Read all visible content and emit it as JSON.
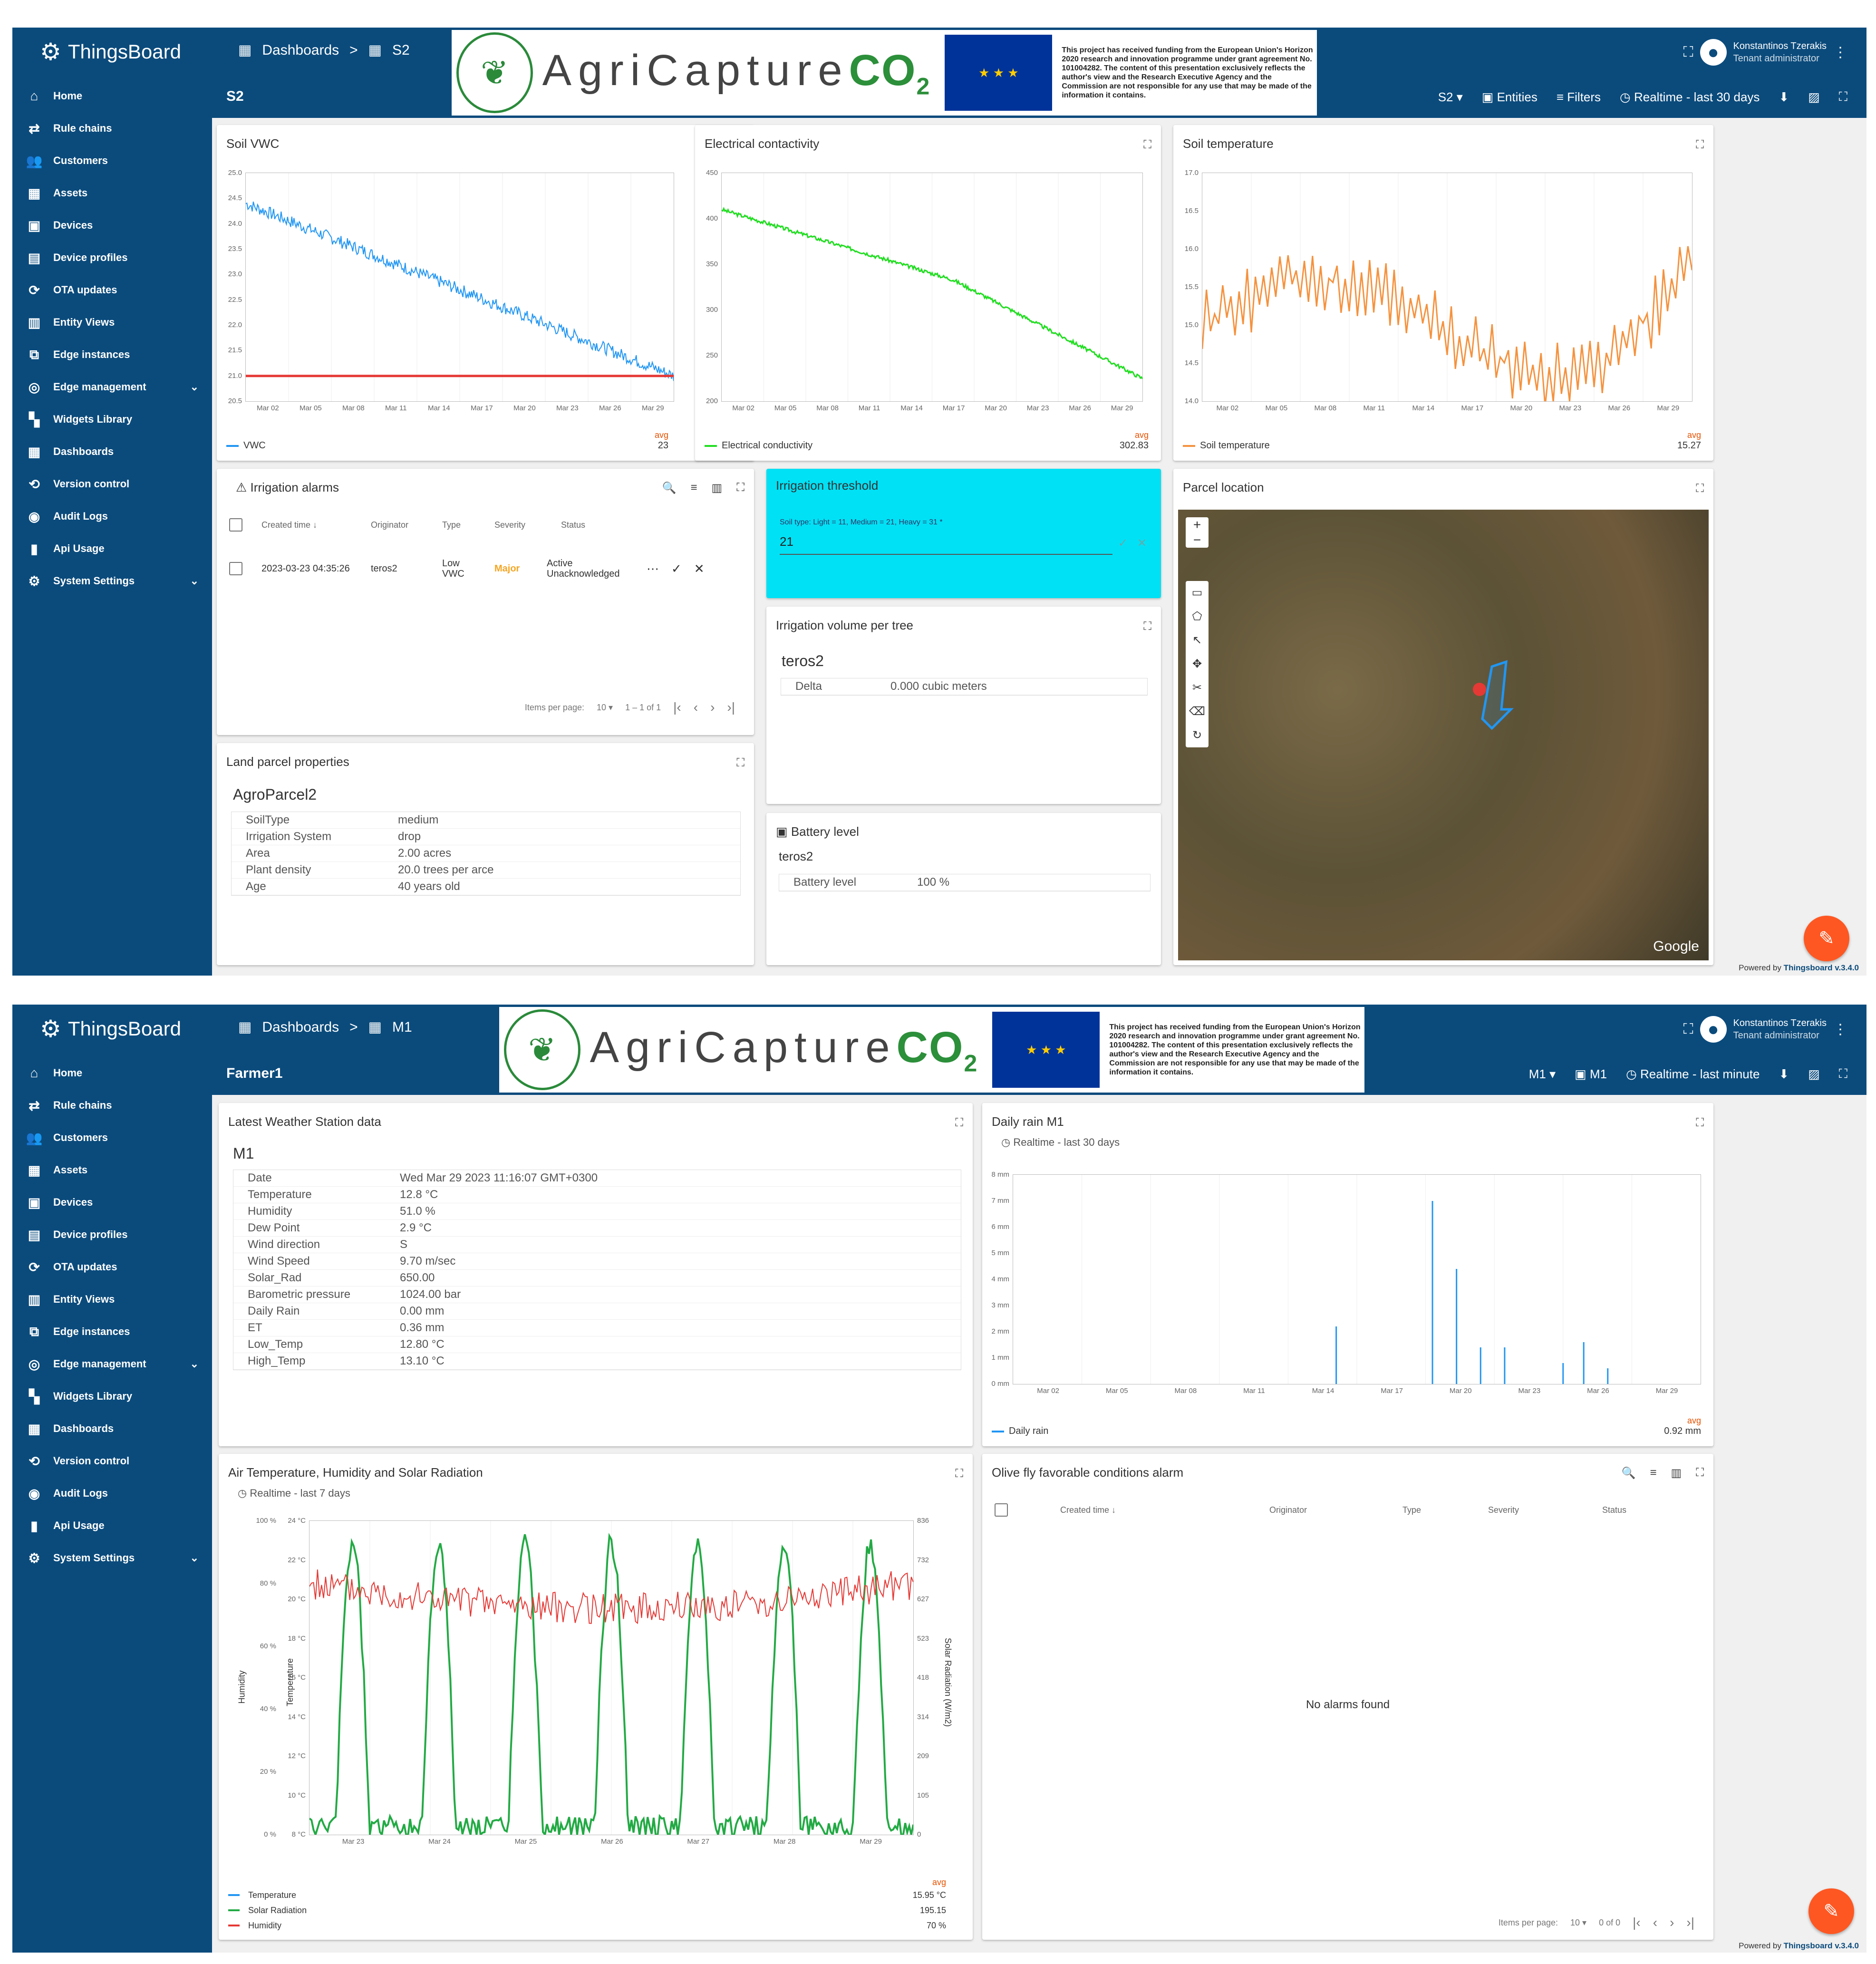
{
  "brand": "ThingsBoard",
  "menu": [
    {
      "label": "Home",
      "icon": "home-icon"
    },
    {
      "label": "Rule chains",
      "icon": "rule-chains-icon"
    },
    {
      "label": "Customers",
      "icon": "customers-icon"
    },
    {
      "label": "Assets",
      "icon": "assets-icon"
    },
    {
      "label": "Devices",
      "icon": "devices-icon"
    },
    {
      "label": "Device profiles",
      "icon": "device-profiles-icon"
    },
    {
      "label": "OTA updates",
      "icon": "ota-updates-icon"
    },
    {
      "label": "Entity Views",
      "icon": "entity-views-icon"
    },
    {
      "label": "Edge instances",
      "icon": "edge-instances-icon"
    },
    {
      "label": "Edge management",
      "icon": "edge-management-icon",
      "expand": true
    },
    {
      "label": "Widgets Library",
      "icon": "widgets-library-icon"
    },
    {
      "label": "Dashboards",
      "icon": "dashboards-icon"
    },
    {
      "label": "Version control",
      "icon": "version-control-icon"
    },
    {
      "label": "Audit Logs",
      "icon": "audit-logs-icon"
    },
    {
      "label": "Api Usage",
      "icon": "api-usage-icon"
    },
    {
      "label": "System Settings",
      "icon": "system-settings-icon",
      "expand": true
    }
  ],
  "user": {
    "name": "Konstantinos Tzerakis",
    "role": "Tenant administrator"
  },
  "banner": {
    "name_part": "AgriCapture",
    "co": "CO",
    "sub": "2",
    "funding": "This project has received funding from the European Union's Horizon 2020 research and innovation programme under grant agreement No. 101004282. The content of this presentation exclusively reflects the author's view and the Research Executive Agency and the Commission are not responsible for any use that may be made of the information it contains."
  },
  "powered": {
    "prefix": "Powered by ",
    "link": "Thingsboard v.3.4.0"
  },
  "s1": {
    "crumb_root": "Dashboards",
    "crumb_sep": ">",
    "crumb_current": "S2",
    "title": "S2",
    "toolbar": {
      "entity": "S2",
      "entities": "Entities",
      "filters": "Filters",
      "time": "Realtime - last 30 days"
    },
    "x_ticks": [
      "Mar 02",
      "Mar 05",
      "Mar 08",
      "Mar 11",
      "Mar 14",
      "Mar 17",
      "Mar 20",
      "Mar 23",
      "Mar 26",
      "Mar 29"
    ],
    "vwc": {
      "title": "Soil VWC",
      "legend": "VWC",
      "avg_label": "avg",
      "avg": "23",
      "yticks": [
        "25.0",
        "24.5",
        "24.0",
        "23.5",
        "23.0",
        "22.5",
        "22.0",
        "21.5",
        "21.0",
        "20.5"
      ],
      "color": "#2196f3",
      "threshold_color": "#e53935"
    },
    "ec": {
      "title": "Electrical contactivity",
      "legend": "Electrical conductivity",
      "avg_label": "avg",
      "avg": "302.83",
      "yticks": [
        "450",
        "400",
        "350",
        "300",
        "250",
        "200"
      ],
      "color": "#22dd22"
    },
    "soil_temp": {
      "title": "Soil temperature",
      "legend": "Soil temperature",
      "avg_label": "avg",
      "avg": "15.27",
      "yticks": [
        "17.0",
        "16.5",
        "16.0",
        "15.5",
        "15.0",
        "14.5",
        "14.0"
      ],
      "color": "#f5923e"
    },
    "alarms": {
      "title": "Irrigation alarms",
      "cols": [
        "Created time",
        "Originator",
        "Type",
        "Severity",
        "Status"
      ],
      "sort_mark": "↓",
      "row": {
        "time": "2023-03-23 04:35:26",
        "originator": "teros2",
        "type": "Low VWC",
        "severity": "Major",
        "status": "Active Unacknowledged"
      },
      "ipp_label": "Items per page:",
      "ipp": "10",
      "range": "1 – 1 of 1"
    },
    "threshold": {
      "title": "Irrigation threshold",
      "hint": "Soil type: Light = 11, Medium = 21, Heavy = 31 *",
      "value": "21"
    },
    "volume": {
      "title": "Irrigation volume per tree",
      "entity": "teros2",
      "key": "Delta",
      "value": "0.000 cubic meters"
    },
    "battery": {
      "title": "Battery level",
      "entity": "teros2",
      "key": "Battery level",
      "value": "100 %"
    },
    "parcel": {
      "title": "Land parcel properties",
      "name": "AgroParcel2",
      "rows": [
        {
          "k": "SoilType",
          "v": "medium"
        },
        {
          "k": "Irrigation System",
          "v": "drop"
        },
        {
          "k": "Area",
          "v": "2.00 acres"
        },
        {
          "k": "Plant density",
          "v": "20.0 trees per arce"
        },
        {
          "k": "Age",
          "v": "40 years old"
        }
      ]
    },
    "map": {
      "title": "Parcel location",
      "attribution": "Google"
    }
  },
  "s2": {
    "crumb_root": "Dashboards",
    "crumb_sep": ">",
    "crumb_current": "M1",
    "title": "Farmer1",
    "toolbar": {
      "entity": "M1",
      "entities": "M1",
      "time": "Realtime - last minute"
    },
    "weather": {
      "title": "Latest Weather Station data",
      "name": "M1",
      "rows": [
        {
          "k": "Date",
          "v": "Wed Mar 29 2023 11:16:07 GMT+0300"
        },
        {
          "k": "Temperature",
          "v": "12.8 °C"
        },
        {
          "k": "Humidity",
          "v": "51.0 %"
        },
        {
          "k": "Dew Point",
          "v": "2.9 °C"
        },
        {
          "k": "Wind direction",
          "v": "S"
        },
        {
          "k": "Wind Speed",
          "v": "9.70 m/sec"
        },
        {
          "k": "Solar_Rad",
          "v": "650.00"
        },
        {
          "k": "Barometric pressure",
          "v": "1024.00 bar"
        },
        {
          "k": "Daily Rain",
          "v": "0.00 mm"
        },
        {
          "k": "ET",
          "v": "0.36 mm"
        },
        {
          "k": "Low_Temp",
          "v": "12.80 °C"
        },
        {
          "k": "High_Temp",
          "v": "13.10 °C"
        }
      ]
    },
    "rain": {
      "title": "Daily rain M1",
      "time": "Realtime - last 30 days",
      "legend": "Daily rain",
      "avg_label": "avg",
      "avg": "0.92 mm",
      "yticks": [
        "8 mm",
        "7 mm",
        "6 mm",
        "5 mm",
        "4 mm",
        "3 mm",
        "2 mm",
        "1 mm",
        "0 mm"
      ],
      "xticks": [
        "Mar 02",
        "Mar 05",
        "Mar 08",
        "Mar 11",
        "Mar 14",
        "Mar 17",
        "Mar 20",
        "Mar 23",
        "Mar 26",
        "Mar 29"
      ],
      "color": "#2196f3"
    },
    "air": {
      "title": "Air Temperature, Humidity and Solar Radiation",
      "time": "Realtime - last 7 days",
      "yleft_hum": [
        "100 %",
        "80 %",
        "60 %",
        "40 %",
        "20 %",
        "0 %"
      ],
      "yleft_temp": [
        "24 °C",
        "22 °C",
        "20 °C",
        "18 °C",
        "16 °C",
        "14 °C",
        "12 °C",
        "10 °C",
        "8 °C"
      ],
      "yright": [
        "836",
        "732",
        "627",
        "523",
        "418",
        "314",
        "209",
        "105",
        "0"
      ],
      "xticks": [
        "Mar 23",
        "Mar 24",
        "Mar 25",
        "Mar 26",
        "Mar 27",
        "Mar 28",
        "Mar 29"
      ],
      "hum_label": "Humidity",
      "temp_label": "Temperature",
      "rad_label": "Solar Radiation (W/m2)",
      "avg_label": "avg",
      "legend": [
        {
          "name": "Temperature",
          "val": "15.95 °C",
          "color": "#2196f3"
        },
        {
          "name": "Solar Radiation",
          "val": "195.15",
          "color": "#22aa44"
        },
        {
          "name": "Humidity",
          "val": "70 %",
          "color": "#e53935"
        }
      ]
    },
    "olive": {
      "title": "Olive fly favorable conditions alarm",
      "cols": [
        "Created time",
        "Originator",
        "Type",
        "Severity",
        "Status"
      ],
      "sort_mark": "↓",
      "empty": "No alarms found",
      "ipp_label": "Items per page:",
      "ipp": "10",
      "range": "0 of 0"
    }
  }
}
